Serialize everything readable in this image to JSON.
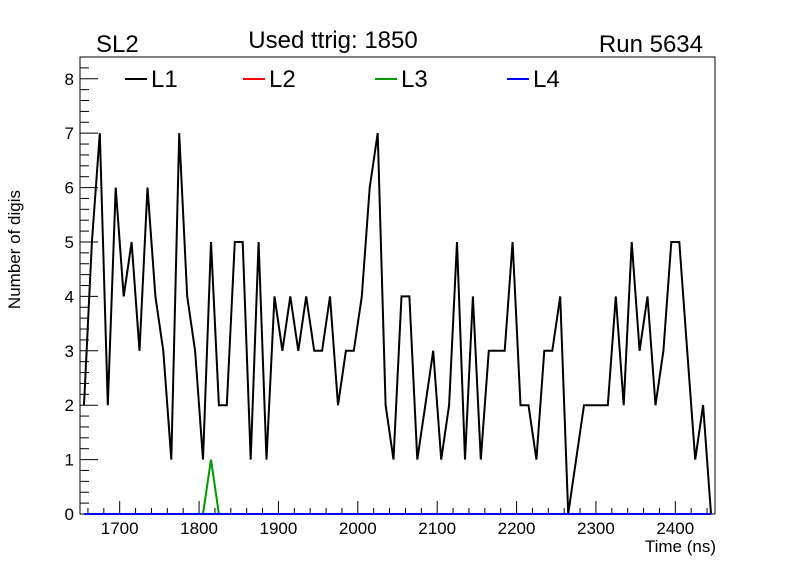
{
  "header": {
    "left": "SL2",
    "center": "Used ttrig: 1850",
    "right": "Run 5634"
  },
  "chart_data": {
    "type": "line",
    "title": "Used ttrig: 1850",
    "xlabel": "Time (ns)",
    "ylabel": "Number of digis",
    "xlim": [
      1650,
      2450
    ],
    "ylim": [
      0,
      8.4
    ],
    "x_ticks": [
      1700,
      1800,
      1900,
      2000,
      2100,
      2200,
      2300,
      2400
    ],
    "y_ticks": [
      0,
      1,
      2,
      3,
      4,
      5,
      6,
      7,
      8
    ],
    "grid": false,
    "legend_position": "top",
    "bin_width": 10,
    "x_start": 1655,
    "series": [
      {
        "name": "L1",
        "color": "#000000",
        "values": [
          2,
          5,
          7,
          2,
          6,
          4,
          5,
          3,
          6,
          4,
          3,
          1,
          7,
          4,
          3,
          1,
          5,
          2,
          2,
          5,
          5,
          1,
          5,
          1,
          4,
          3,
          4,
          3,
          4,
          3,
          3,
          4,
          2,
          3,
          3,
          4,
          6,
          7,
          2,
          1,
          4,
          4,
          1,
          2,
          3,
          1,
          2,
          5,
          1,
          4,
          1,
          3,
          3,
          3,
          5,
          2,
          2,
          1,
          3,
          3,
          4,
          0,
          1,
          2,
          2,
          2,
          2,
          4,
          2,
          5,
          3,
          4,
          2,
          3,
          5,
          5,
          3,
          1,
          2,
          0
        ]
      },
      {
        "name": "L2",
        "color": "#ff0000",
        "values": [
          0,
          0,
          0,
          0,
          0,
          0,
          0,
          0,
          0,
          0,
          0,
          0,
          0,
          0,
          0,
          0,
          0,
          0,
          0,
          0,
          0,
          0,
          0,
          0,
          0,
          0,
          0,
          0,
          0,
          0,
          0,
          0,
          0,
          0,
          0,
          0,
          0,
          0,
          0,
          0,
          0,
          0,
          0,
          0,
          0,
          0,
          0,
          0,
          0,
          0,
          0,
          0,
          0,
          0,
          0,
          0,
          0,
          0,
          0,
          0,
          0,
          0,
          0,
          0,
          0,
          0,
          0,
          0,
          0,
          0,
          0,
          0,
          0,
          0,
          0,
          0,
          0,
          0,
          0,
          0
        ]
      },
      {
        "name": "L3",
        "color": "#009900",
        "values": [
          0,
          0,
          0,
          0,
          0,
          0,
          0,
          0,
          0,
          0,
          0,
          0,
          0,
          0,
          0,
          0,
          1,
          0,
          0,
          0,
          0,
          0,
          0,
          0,
          0,
          0,
          0,
          0,
          0,
          0,
          0,
          0,
          0,
          0,
          0,
          0,
          0,
          0,
          0,
          0,
          0,
          0,
          0,
          0,
          0,
          0,
          0,
          0,
          0,
          0,
          0,
          0,
          0,
          0,
          0,
          0,
          0,
          0,
          0,
          0,
          0,
          0,
          0,
          0,
          0,
          0,
          0,
          0,
          0,
          0,
          0,
          0,
          0,
          0,
          0,
          0,
          0,
          0,
          0,
          0
        ]
      },
      {
        "name": "L4",
        "color": "#0000ff",
        "values": [
          0,
          0,
          0,
          0,
          0,
          0,
          0,
          0,
          0,
          0,
          0,
          0,
          0,
          0,
          0,
          0,
          0,
          0,
          0,
          0,
          0,
          0,
          0,
          0,
          0,
          0,
          0,
          0,
          0,
          0,
          0,
          0,
          0,
          0,
          0,
          0,
          0,
          0,
          0,
          0,
          0,
          0,
          0,
          0,
          0,
          0,
          0,
          0,
          0,
          0,
          0,
          0,
          0,
          0,
          0,
          0,
          0,
          0,
          0,
          0,
          0,
          0,
          0,
          0,
          0,
          0,
          0,
          0,
          0,
          0,
          0,
          0,
          0,
          0,
          0,
          0,
          0,
          0,
          0,
          0
        ]
      }
    ]
  }
}
